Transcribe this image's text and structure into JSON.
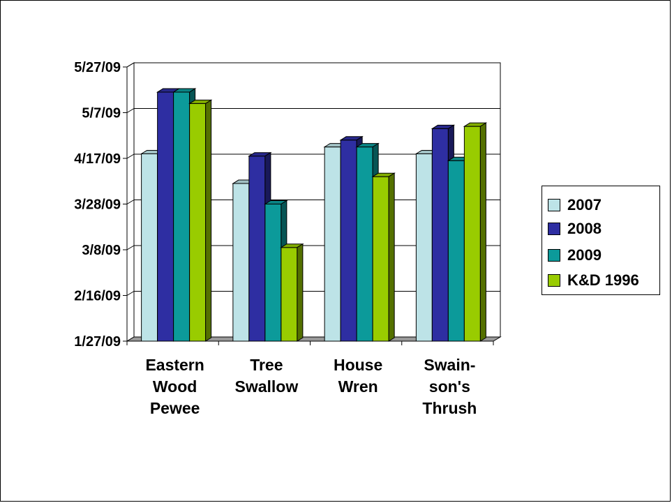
{
  "chart_data": {
    "type": "bar",
    "style": "3d-clustered-column",
    "categories": [
      [
        "Eastern",
        "Wood",
        "Pewee"
      ],
      [
        "Tree",
        "Swallow"
      ],
      [
        "House",
        "Wren"
      ],
      [
        "Swain-",
        "son's",
        "Thrush"
      ]
    ],
    "y_tick_labels": [
      "1/27/09",
      "2/16/09",
      "3/8/09",
      "3/28/09",
      "4/17/09",
      "5/7/09",
      "5/27/09"
    ],
    "y_unit": "days after 1/27/09",
    "ylim": [
      0,
      120
    ],
    "y_tick_step_days": 20,
    "series": [
      {
        "name": "2007",
        "color": "#bde3e7",
        "values": [
          82,
          69,
          85,
          82
        ]
      },
      {
        "name": "2008",
        "color": "#2e2ea2",
        "values": [
          109,
          81,
          88,
          93
        ]
      },
      {
        "name": "2009",
        "color": "#0c9a9a",
        "values": [
          109,
          60,
          85,
          79
        ]
      },
      {
        "name": "K&D 1996",
        "color": "#99cc00",
        "values": [
          104,
          41,
          72,
          94
        ]
      }
    ],
    "grid": true,
    "legend_position": "right"
  },
  "legend": {
    "items": [
      {
        "label": "2007",
        "color": "#bde3e7"
      },
      {
        "label": "2008",
        "color": "#2e2ea2"
      },
      {
        "label": "2009",
        "color": "#0c9a9a"
      },
      {
        "label": "K&D 1996",
        "color": "#99cc00"
      }
    ]
  }
}
